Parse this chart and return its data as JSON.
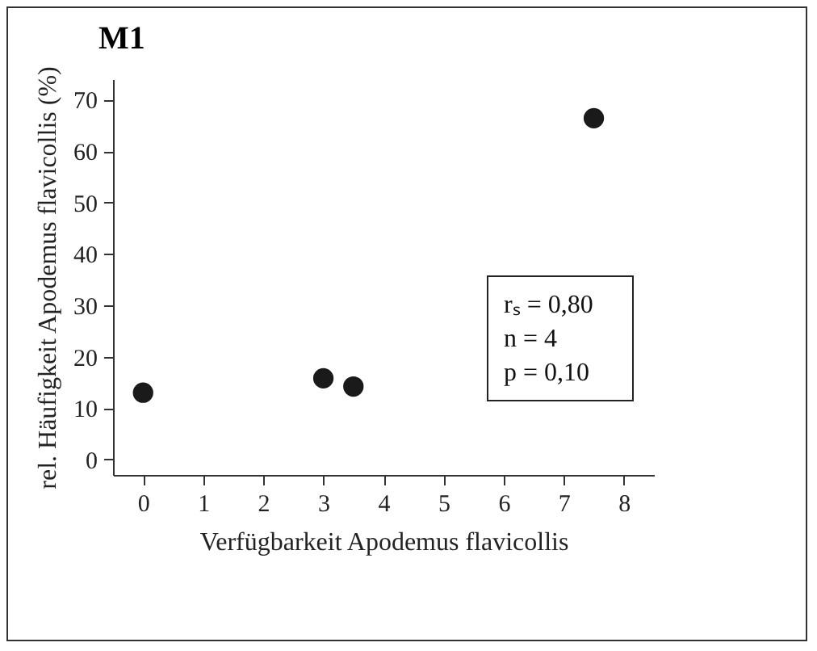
{
  "chart_data": {
    "type": "scatter",
    "title": "M1",
    "xlabel": "Verfügbarkeit Apodemus flavicollis",
    "ylabel": "rel. Häufigkeit Apodemus flavicollis (%)",
    "x": [
      0,
      3,
      3.5,
      7.5
    ],
    "series": [
      {
        "color": "#1a1a1a",
        "values": [
          13,
          15.8,
          14.2,
          66.4
        ]
      }
    ],
    "xlim": [
      -0.5,
      8.5
    ],
    "xticks": [
      0,
      1,
      2,
      3,
      4,
      5,
      6,
      7,
      8
    ],
    "ylim": [
      -3,
      74
    ],
    "yticks": [
      0,
      10,
      20,
      30,
      40,
      50,
      60,
      70
    ],
    "grid": false,
    "legend": false,
    "marker": "circle",
    "annotations": [
      "rₛ = 0,80",
      "n = 4",
      "p = 0,10"
    ]
  }
}
